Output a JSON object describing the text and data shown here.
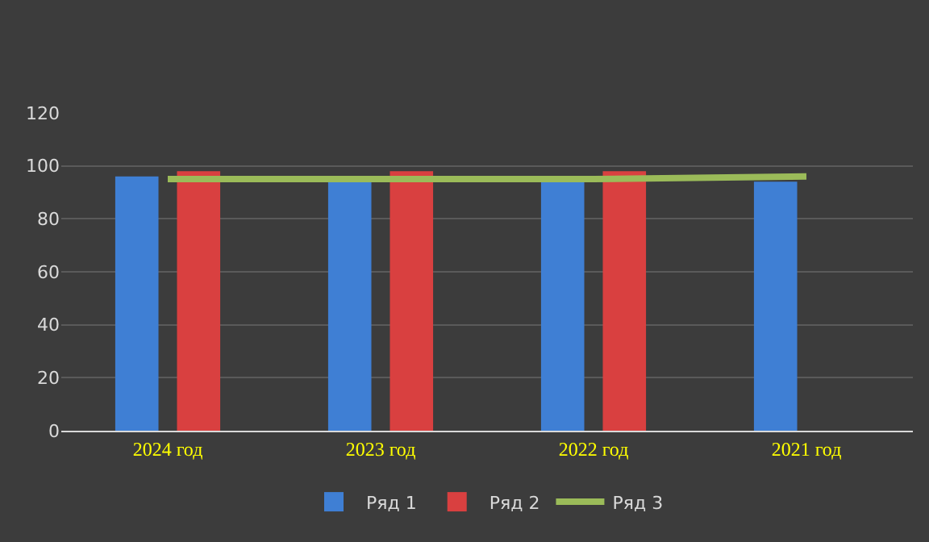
{
  "chart_data": {
    "type": "bar",
    "categories": [
      "2024 год",
      "2023 год",
      "2022 год",
      "2021 год"
    ],
    "series": [
      {
        "name": "Ряд 1",
        "color": "#3f7fd4",
        "values": [
          96,
          94,
          94,
          94
        ]
      },
      {
        "name": "Ряд 2",
        "color": "#d94040",
        "values": [
          98,
          98,
          98,
          null
        ]
      },
      {
        "name": "Ряд 3",
        "color": "#9bbb59",
        "type": "line",
        "values": [
          95,
          95,
          95,
          96
        ]
      }
    ],
    "ylim": [
      0,
      120
    ],
    "yticks": [
      0,
      20,
      40,
      60,
      80,
      100,
      120
    ],
    "grid": "y",
    "legend": "bottom",
    "marker": "none"
  }
}
